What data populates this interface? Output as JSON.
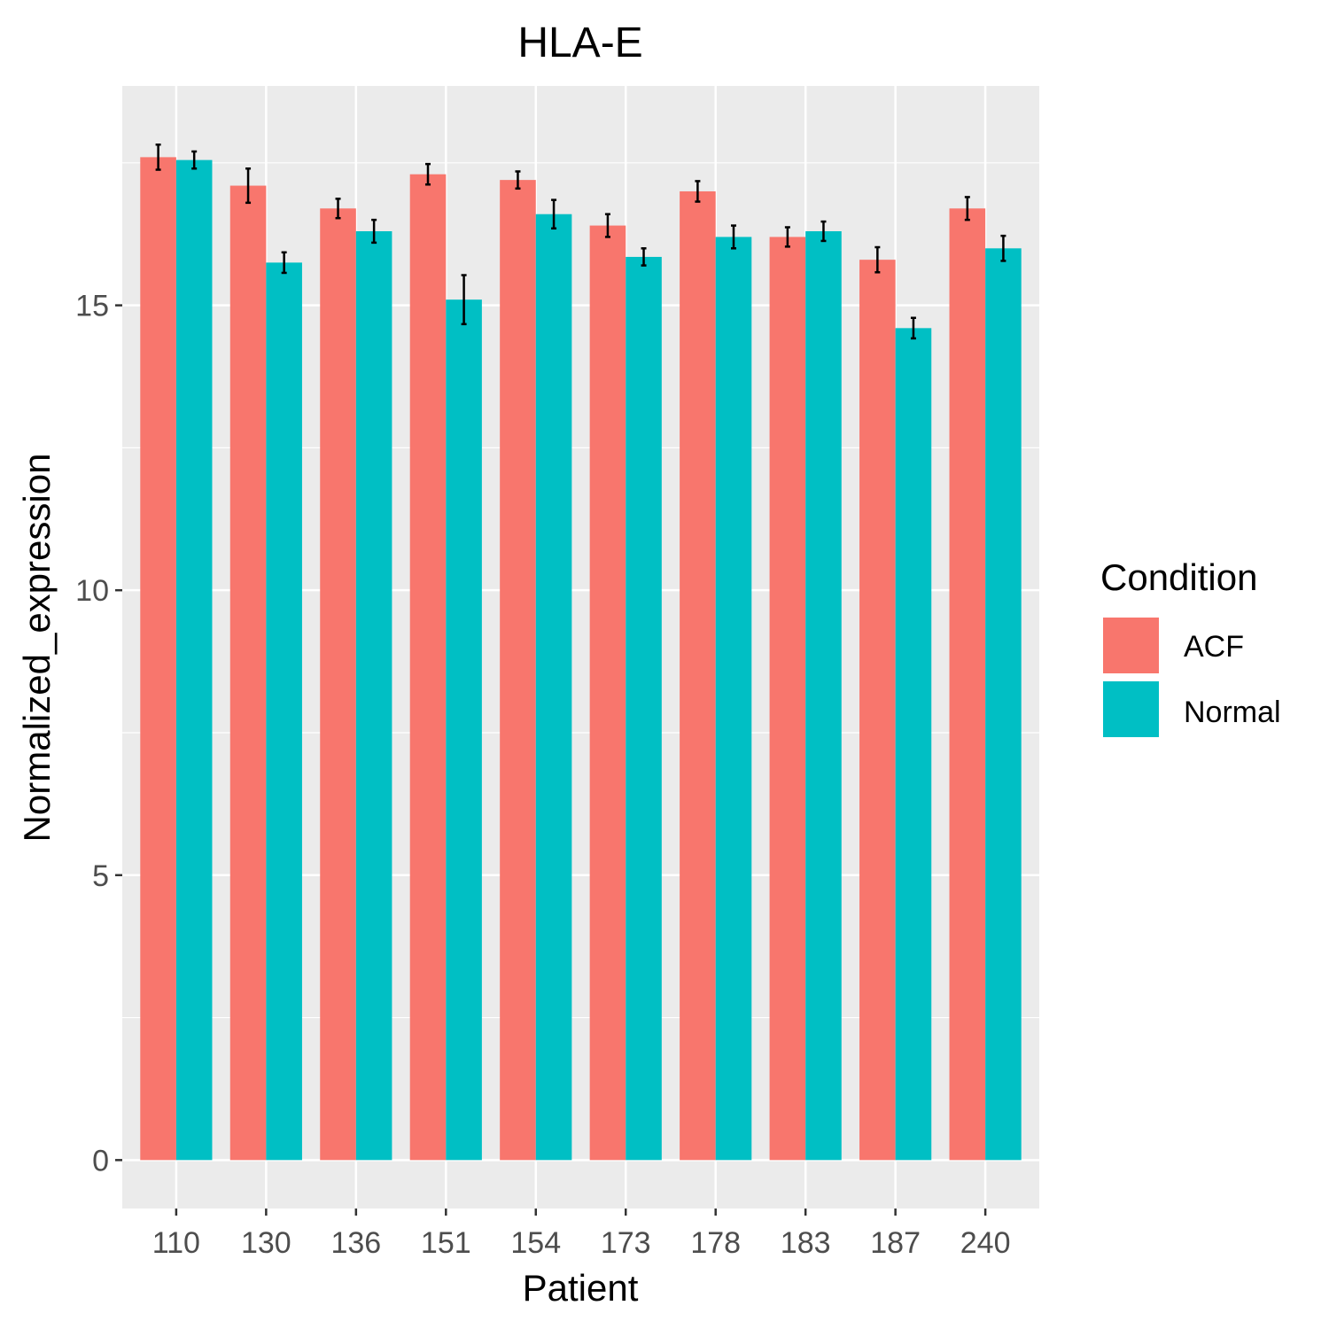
{
  "chart_data": {
    "type": "bar",
    "title": "HLA-E",
    "xlabel": "Patient",
    "ylabel": "Normalized_expression",
    "categories": [
      "110",
      "130",
      "136",
      "151",
      "154",
      "173",
      "178",
      "183",
      "187",
      "240"
    ],
    "ylim": [
      -0.85,
      18.85
    ],
    "yticks": [
      0,
      5,
      10,
      15
    ],
    "grid": true,
    "legend": {
      "title": "Condition",
      "position": "right"
    },
    "series": [
      {
        "name": "ACF",
        "color": "#F8766D",
        "values": [
          17.6,
          17.1,
          16.7,
          17.3,
          17.2,
          16.4,
          17.0,
          16.2,
          15.8,
          16.7
        ],
        "error": [
          0.22,
          0.3,
          0.17,
          0.18,
          0.15,
          0.2,
          0.18,
          0.17,
          0.22,
          0.2
        ]
      },
      {
        "name": "Normal",
        "color": "#00BFC4",
        "values": [
          17.55,
          15.75,
          16.3,
          15.1,
          16.6,
          15.85,
          16.2,
          16.3,
          14.6,
          16.0
        ],
        "error": [
          0.15,
          0.18,
          0.2,
          0.43,
          0.25,
          0.15,
          0.2,
          0.17,
          0.18,
          0.22
        ]
      }
    ]
  }
}
